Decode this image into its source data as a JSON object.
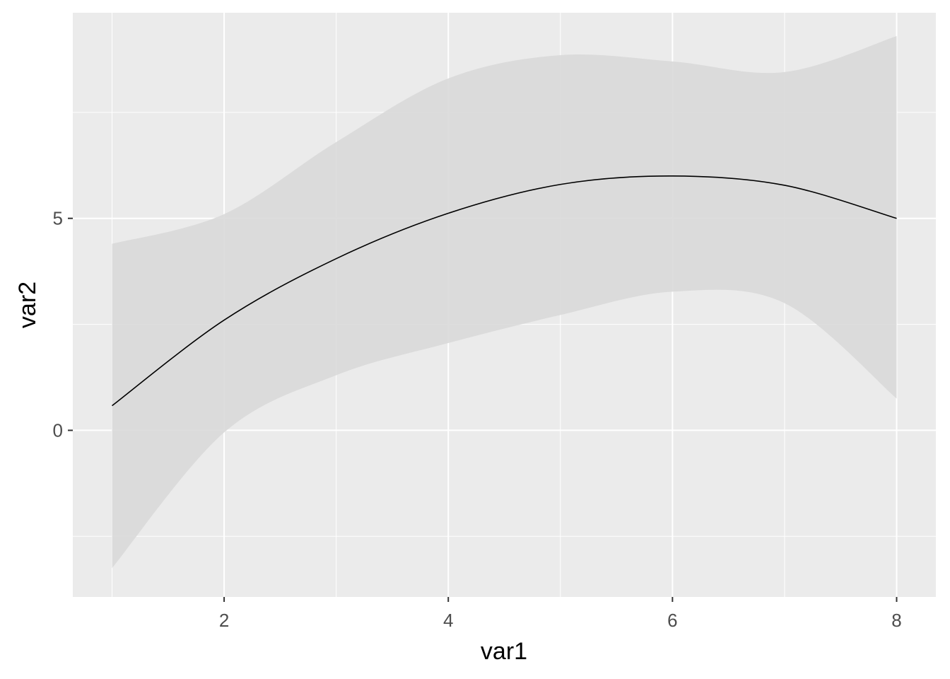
{
  "chart_data": {
    "type": "line",
    "title": "",
    "xlabel": "var1",
    "ylabel": "var2",
    "xlim": [
      0.65,
      8.35
    ],
    "ylim": [
      -3.93,
      9.85
    ],
    "x_ticks": [
      2,
      4,
      6,
      8
    ],
    "x_tick_labels": [
      "2",
      "4",
      "6",
      "8"
    ],
    "y_ticks": [
      0,
      5
    ],
    "y_tick_labels": [
      "0",
      "5"
    ],
    "x_minor_ticks": [
      1,
      3,
      5,
      7
    ],
    "y_minor_ticks": [
      -2.5,
      2.5,
      7.5
    ],
    "grid": true,
    "legend": "none",
    "colors": {
      "panel_background": "#ebebeb",
      "grid_line": "#ffffff",
      "ribbon": "#d9d9d9",
      "line": "#000000",
      "tick_text": "#4d4d4d",
      "axis_title": "#000000"
    },
    "series": [
      {
        "x": [
          1,
          2,
          3,
          4,
          5,
          6,
          7,
          8
        ],
        "values": [
          0.58,
          2.6,
          4.05,
          5.12,
          5.8,
          6.0,
          5.78,
          5.0
        ],
        "lower": [
          -3.25,
          -0.05,
          1.3,
          2.06,
          2.72,
          3.27,
          3.0,
          0.75
        ],
        "upper": [
          4.4,
          5.1,
          6.8,
          8.3,
          8.85,
          8.7,
          8.45,
          9.3
        ]
      }
    ]
  }
}
